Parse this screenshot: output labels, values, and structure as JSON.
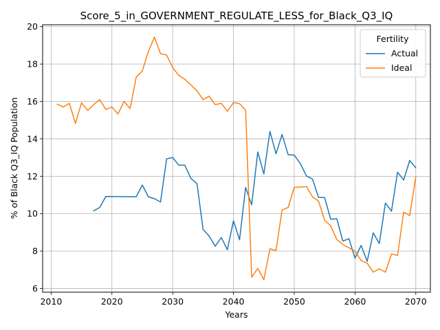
{
  "chart_data": {
    "type": "line",
    "title": "Score_5_in_GOVERNMENT_REGULATE_LESS_for_Black_Q3_IQ",
    "xlabel": "Years",
    "ylabel": "% of Black Q3_IQ Population",
    "xlim": [
      2008.6,
      2072.4
    ],
    "ylim": [
      5.8,
      20.1
    ],
    "xticks": [
      2010,
      2020,
      2030,
      2040,
      2050,
      2060,
      2070
    ],
    "yticks": [
      6,
      8,
      10,
      12,
      14,
      16,
      18,
      20
    ],
    "grid": true,
    "legend": {
      "title": "Fertility",
      "position": "top-right"
    },
    "series": [
      {
        "name": "Actual",
        "color": "#1f77b4",
        "x": [
          2017,
          2018,
          2019,
          2024,
          2025,
          2026,
          2027,
          2028,
          2029,
          2030,
          2031,
          2032,
          2033,
          2034,
          2035,
          2036,
          2037,
          2038,
          2039,
          2040,
          2041,
          2042,
          2043,
          2044,
          2045,
          2046,
          2047,
          2048,
          2049,
          2050,
          2051,
          2052,
          2053,
          2054,
          2055,
          2056,
          2057,
          2058,
          2059,
          2060,
          2061,
          2062,
          2063,
          2064,
          2065,
          2066,
          2067,
          2068,
          2069,
          2070
        ],
        "values": [
          10.15,
          10.33,
          10.92,
          10.9,
          11.53,
          10.9,
          10.8,
          10.62,
          12.93,
          13.0,
          12.59,
          12.59,
          11.88,
          11.6,
          9.16,
          8.8,
          8.26,
          8.72,
          8.07,
          9.62,
          8.6,
          11.4,
          10.47,
          13.3,
          12.12,
          14.4,
          13.2,
          14.23,
          13.15,
          13.13,
          12.68,
          12.02,
          11.85,
          10.87,
          10.86,
          9.7,
          9.73,
          8.53,
          8.66,
          7.62,
          8.3,
          7.45,
          8.97,
          8.4,
          10.57,
          10.13,
          12.22,
          11.8,
          12.84,
          12.45
        ]
      },
      {
        "name": "Ideal",
        "color": "#ff7f0e",
        "x": [
          2011,
          2012,
          2013,
          2014,
          2015,
          2016,
          2017,
          2018,
          2019,
          2020,
          2021,
          2022,
          2023,
          2024,
          2025,
          2026,
          2027,
          2028,
          2029,
          2030,
          2031,
          2032,
          2033,
          2034,
          2035,
          2036,
          2037,
          2038,
          2039,
          2040,
          2041,
          2042,
          2043,
          2044,
          2045,
          2046,
          2047,
          2048,
          2049,
          2050,
          2051,
          2052,
          2053,
          2054,
          2055,
          2056,
          2057,
          2058,
          2059,
          2060,
          2061,
          2062,
          2063,
          2064,
          2065,
          2066,
          2067,
          2068,
          2069,
          2070
        ],
        "values": [
          15.85,
          15.7,
          15.9,
          14.82,
          15.93,
          15.52,
          15.83,
          16.1,
          15.57,
          15.7,
          15.33,
          16.0,
          15.62,
          17.3,
          17.63,
          18.67,
          19.44,
          18.55,
          18.48,
          17.8,
          17.4,
          17.18,
          16.88,
          16.57,
          16.1,
          16.28,
          15.83,
          15.9,
          15.47,
          15.94,
          15.88,
          15.53,
          6.6,
          7.07,
          6.47,
          8.12,
          8.02,
          10.2,
          10.33,
          11.41,
          11.42,
          11.45,
          10.9,
          10.67,
          9.65,
          9.35,
          8.62,
          8.35,
          8.17,
          8.0,
          7.5,
          7.35,
          6.87,
          7.05,
          6.87,
          7.85,
          7.76,
          10.08,
          9.9,
          11.97
        ]
      }
    ]
  }
}
